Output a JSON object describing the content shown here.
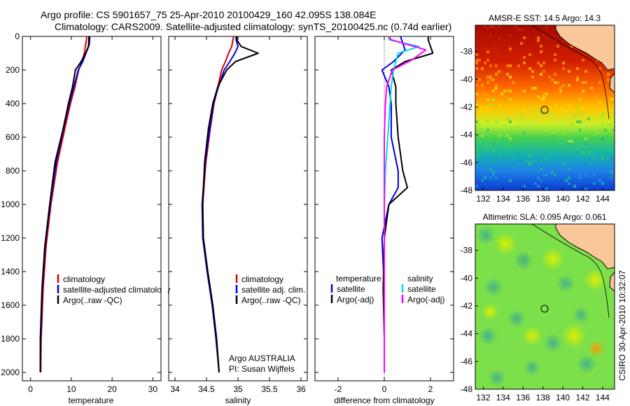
{
  "header": {
    "line1": "Argo profile: CS 5901657_75 25-Apr-2010 20100429_160 42.095S 138.084E",
    "line2": "Climatology: CARS2009. Satellite-adjusted climatology: synTS_20100425.nc (0.74d earlier)"
  },
  "credit": {
    "org": "Argo AUSTRALIA",
    "pi": "PI: Susan Wijffels",
    "stamp": "CSIRO 30-Apr-2010 10:32:07"
  },
  "colors": {
    "climatology": "#dd0000",
    "satellite": "#0000dd",
    "argo": "#000000",
    "sal_satellite": "#00dddd",
    "sal_argo": "#ff00ff"
  },
  "chart_data": [
    {
      "type": "line",
      "xlabel": "temperature",
      "ylabel": "",
      "xlim": [
        -2,
        32
      ],
      "ylim": [
        2050,
        0
      ],
      "xticks": [
        0,
        10,
        20,
        30
      ],
      "yticks": [
        0,
        200,
        400,
        600,
        800,
        1000,
        1200,
        1400,
        1600,
        1800,
        2000
      ],
      "legend": [
        "climatology",
        "satellite-adjusted climatology",
        "Argo(..raw -QC)"
      ],
      "series": [
        {
          "name": "climatology",
          "color": "climatology",
          "x": [
            13.8,
            13.7,
            13.5,
            13.2,
            12.6,
            11.8,
            10.9,
            9.8,
            8.4,
            6.6,
            5.0,
            3.8,
            3.1,
            2.6,
            2.5
          ],
          "y": [
            0,
            20,
            50,
            100,
            150,
            200,
            300,
            400,
            550,
            750,
            1000,
            1250,
            1500,
            1800,
            2000
          ]
        },
        {
          "name": "satellite-adjusted climatology",
          "color": "satellite",
          "x": [
            14.5,
            14.5,
            14.4,
            13.6,
            12.8,
            11.7,
            10.6,
            9.5,
            8.1,
            6.3,
            4.8,
            3.6,
            2.9,
            2.5,
            2.4
          ],
          "y": [
            0,
            20,
            50,
            100,
            150,
            200,
            300,
            400,
            550,
            750,
            1000,
            1250,
            1500,
            1800,
            2000
          ]
        },
        {
          "name": "Argo(..raw -QC)",
          "color": "argo",
          "x": [
            14.3,
            14.3,
            14.2,
            13.5,
            12.4,
            11.0,
            10.3,
            9.3,
            8.0,
            6.0,
            4.7,
            3.5,
            2.8,
            2.4,
            2.4
          ],
          "y": [
            0,
            20,
            60,
            100,
            150,
            200,
            300,
            400,
            550,
            750,
            1000,
            1250,
            1500,
            1800,
            2000
          ]
        }
      ]
    },
    {
      "type": "line",
      "xlabel": "salinity",
      "ylabel": "",
      "xlim": [
        33.9,
        36.1
      ],
      "ylim": [
        2050,
        0
      ],
      "xticks": [
        34,
        34.5,
        35,
        35.5,
        36
      ],
      "legend": [
        "climatology",
        "satellite adj. clim.",
        "Argo(..raw -QC)"
      ],
      "series": [
        {
          "name": "climatology",
          "color": "climatology",
          "x": [
            34.93,
            34.92,
            34.9,
            34.85,
            34.8,
            34.74,
            34.68,
            34.62,
            34.56,
            34.49,
            34.44,
            34.45,
            34.52,
            34.6,
            34.66,
            34.7
          ],
          "y": [
            0,
            20,
            60,
            100,
            150,
            200,
            300,
            400,
            550,
            750,
            1000,
            1200,
            1400,
            1600,
            1800,
            2000
          ]
        },
        {
          "name": "satellite adj. clim.",
          "color": "satellite",
          "x": [
            34.97,
            34.97,
            35.0,
            34.95,
            34.87,
            34.78,
            34.69,
            34.61,
            34.55,
            34.48,
            34.43,
            34.44,
            34.51,
            34.59,
            34.65,
            34.7
          ],
          "y": [
            0,
            20,
            60,
            100,
            150,
            200,
            300,
            400,
            550,
            750,
            1000,
            1200,
            1400,
            1600,
            1800,
            2000
          ]
        },
        {
          "name": "Argo(..raw -QC)",
          "color": "argo",
          "x": [
            34.98,
            34.98,
            35.05,
            35.32,
            34.96,
            34.82,
            34.68,
            34.6,
            34.53,
            34.47,
            34.44,
            34.45,
            34.52,
            34.6,
            34.66,
            34.7
          ],
          "y": [
            0,
            20,
            60,
            100,
            150,
            200,
            300,
            400,
            550,
            750,
            1000,
            1200,
            1400,
            1600,
            1800,
            2000
          ]
        }
      ]
    },
    {
      "type": "line",
      "xlabel": "difference from climatology",
      "ylabel": "",
      "xlim": [
        -3,
        3
      ],
      "ylim": [
        2050,
        0
      ],
      "xticks": [
        -2,
        0,
        2
      ],
      "legend": [
        "temperature",
        "satellite",
        "Argo(-adj)",
        "salinity",
        "satellite",
        "Argo(-adj)"
      ],
      "series": [
        {
          "name": "satellite",
          "color": "satellite",
          "x": [
            0.7,
            0.75,
            0.9,
            0.4,
            -0.1,
            0.2,
            0.3,
            0.3,
            0.6,
            0.6,
            0.2,
            -0.1,
            0.0,
            0.0,
            0.0
          ],
          "y": [
            0,
            20,
            80,
            150,
            200,
            300,
            400,
            600,
            800,
            900,
            1000,
            1200,
            1500,
            1800,
            2000
          ]
        },
        {
          "name": "Argo(-adj)",
          "color": "argo",
          "x": [
            1.9,
            1.9,
            2.1,
            0.9,
            0.3,
            0.5,
            0.5,
            0.6,
            0.8,
            1.0,
            0.2,
            0.0,
            -0.05,
            0.0,
            0.0
          ],
          "y": [
            0,
            20,
            100,
            150,
            200,
            300,
            400,
            600,
            800,
            900,
            1000,
            1200,
            1500,
            1800,
            2000
          ]
        },
        {
          "name": "satellite",
          "color": "sal_satellite",
          "x": [
            0.2,
            0.2,
            1.5,
            0.6,
            0.4,
            0.3,
            0.25,
            0.15,
            0.05,
            0.0,
            0.0,
            0.0,
            0.0,
            0.0
          ],
          "y": [
            0,
            20,
            60,
            100,
            200,
            300,
            400,
            600,
            800,
            1000,
            1200,
            1500,
            1800,
            2000
          ]
        },
        {
          "name": "Argo(-adj)",
          "color": "sal_argo",
          "x": [
            0.2,
            0.3,
            1.8,
            1.2,
            0.35,
            0.1,
            0.05,
            0.0,
            0.0,
            0.0,
            0.0,
            0.0,
            0.0,
            0.0
          ],
          "y": [
            0,
            20,
            80,
            140,
            200,
            300,
            400,
            600,
            800,
            1000,
            1200,
            1500,
            1800,
            2000
          ]
        }
      ]
    },
    {
      "type": "heatmap",
      "title": "AMSR-E SST: 14.5  Argo: 14.3",
      "xlim": [
        131.2,
        145.2
      ],
      "ylim": [
        -48,
        -36.1
      ],
      "xticks": [
        132,
        134,
        136,
        138,
        140,
        142,
        144
      ],
      "yticks": [
        -38,
        -40,
        -42,
        -44,
        -46,
        -48
      ],
      "marker": {
        "lon": 138.084,
        "lat": -42.095
      }
    },
    {
      "type": "heatmap",
      "title": "Altimetric SLA: 0.095  Argo: 0.061",
      "xlim": [
        131.2,
        145.2
      ],
      "ylim": [
        -48,
        -36.1
      ],
      "xticks": [
        132,
        134,
        136,
        138,
        140,
        142,
        144
      ],
      "yticks": [
        -38,
        -40,
        -42,
        -44,
        -46,
        -48
      ],
      "marker": {
        "lon": 138.084,
        "lat": -42.095
      }
    }
  ]
}
